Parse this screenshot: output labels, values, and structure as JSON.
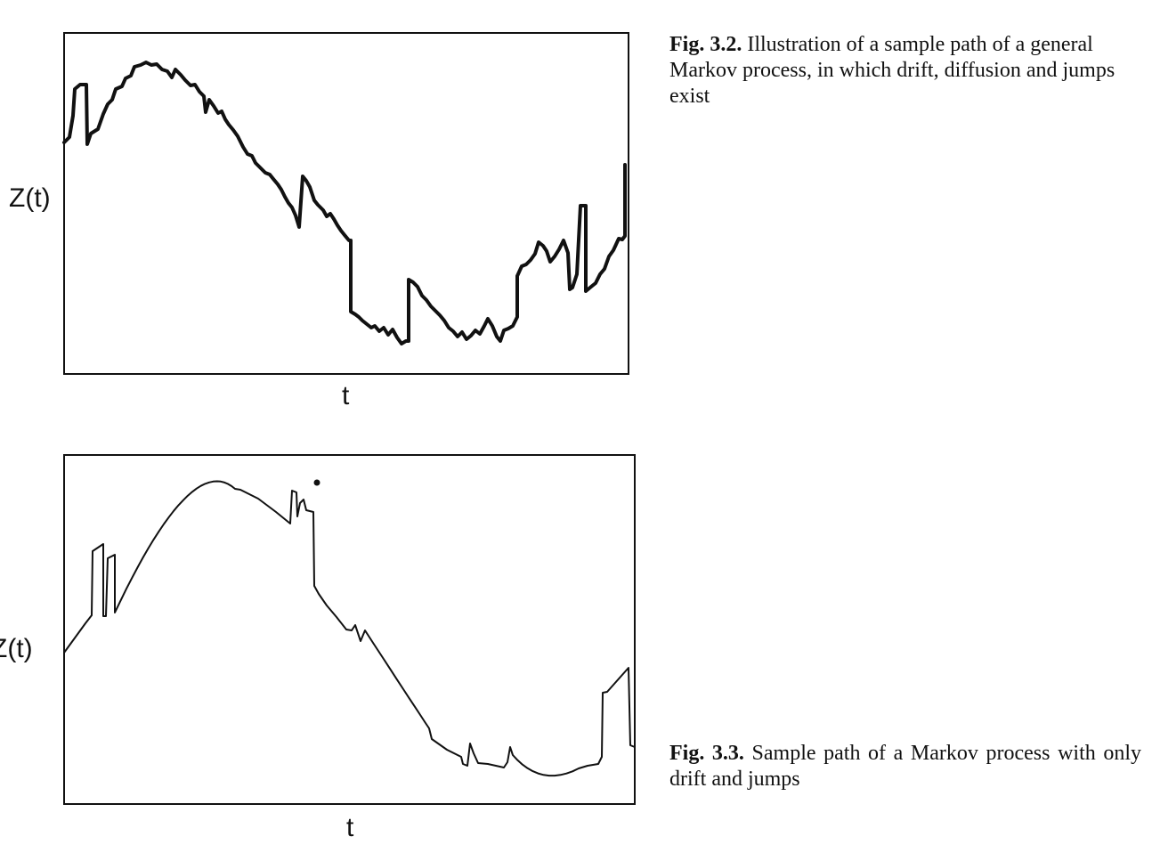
{
  "figures": [
    {
      "caption_number": "Fig. 3.2.",
      "caption_text": "Illustration of a sample path of a general Markov process, in which drift, diffusion and jumps exist",
      "ylabel": "Z(t)",
      "xlabel": "t"
    },
    {
      "caption_number": "Fig. 3.3.",
      "caption_text": "Sample path of a Markov process with only drift and jumps",
      "ylabel": "Z(t)",
      "xlabel": "t"
    }
  ],
  "colors": {
    "ink": "#111111",
    "background": "#ffffff"
  }
}
